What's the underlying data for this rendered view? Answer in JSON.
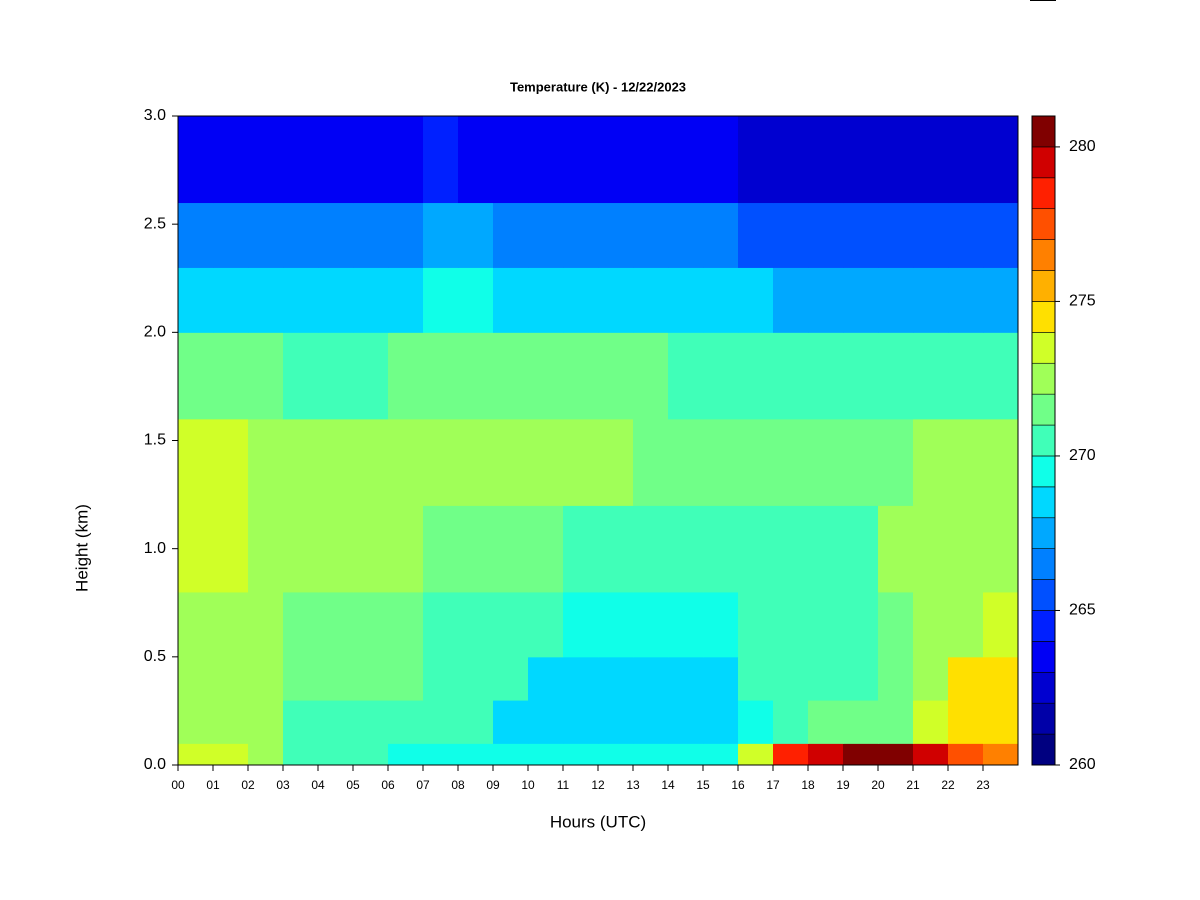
{
  "chart_data": {
    "type": "heatmap",
    "title": "Temperature (K) - 12/22/2023",
    "x_label": "Hours (UTC)",
    "y_label": "Height (km)",
    "xlim": [
      0,
      24
    ],
    "ylim": [
      0,
      3
    ],
    "xticks": [
      {
        "value": 0,
        "label": "00"
      },
      {
        "value": 1,
        "label": "01"
      },
      {
        "value": 2,
        "label": "02"
      },
      {
        "value": 3,
        "label": "03"
      },
      {
        "value": 4,
        "label": "04"
      },
      {
        "value": 5,
        "label": "05"
      },
      {
        "value": 6,
        "label": "06"
      },
      {
        "value": 7,
        "label": "07"
      },
      {
        "value": 8,
        "label": "08"
      },
      {
        "value": 9,
        "label": "09"
      },
      10,
      11,
      12,
      13,
      14,
      15,
      16,
      17,
      18,
      19,
      20,
      21,
      22,
      23
    ],
    "yticks": [
      {
        "value": 0,
        "label": "0.0"
      },
      0.5,
      {
        "value": 1,
        "label": "1.0"
      },
      1.5,
      {
        "value": 2,
        "label": "2.0"
      },
      2.5,
      {
        "value": 3,
        "label": "3.0"
      }
    ],
    "x_edges": [
      0,
      1,
      2,
      3,
      4,
      5,
      6,
      7,
      8,
      9,
      10,
      11,
      12,
      13,
      14,
      15,
      16,
      17,
      18,
      19,
      20,
      21,
      22,
      23,
      24
    ],
    "y_edges": [
      0,
      0.1,
      0.3,
      0.5,
      0.8,
      1.2,
      1.6,
      2.0,
      2.3,
      2.6,
      3.0
    ],
    "z": [
      [
        273,
        273,
        272,
        270,
        270,
        270,
        269.5,
        269.5,
        269.5,
        269,
        269,
        269,
        269,
        269,
        269,
        269.5,
        273,
        278,
        279,
        280,
        280,
        279,
        277,
        276
      ],
      [
        272,
        272,
        272,
        270,
        270,
        270,
        270,
        270,
        270,
        268.5,
        268.5,
        268,
        268,
        268,
        268,
        268.5,
        269,
        270,
        271,
        271,
        271.5,
        273,
        274,
        274
      ],
      [
        272,
        272,
        272,
        271,
        271,
        271,
        271,
        270,
        270,
        270,
        268.5,
        268.5,
        268.5,
        268.5,
        268.5,
        268.5,
        270,
        270,
        270,
        270,
        271,
        272,
        274,
        274
      ],
      [
        272.5,
        272.5,
        272.5,
        271,
        271,
        271,
        271,
        270,
        270,
        270,
        270,
        269,
        269,
        269,
        269,
        269,
        270,
        270,
        270,
        270,
        271,
        272,
        272,
        273
      ],
      [
        273,
        273,
        272,
        272,
        272,
        272,
        272,
        271,
        271,
        271,
        271,
        270,
        270,
        270,
        270,
        270.5,
        270.5,
        270.5,
        270.5,
        270.5,
        272,
        272,
        272,
        272
      ],
      [
        273,
        273,
        272,
        272,
        272,
        272,
        272,
        272,
        272,
        272,
        272,
        272.5,
        272.5,
        271,
        271,
        271,
        271,
        271,
        271,
        271,
        271,
        272,
        272,
        272
      ],
      [
        271,
        271,
        271,
        270.5,
        270.5,
        270.5,
        271,
        271,
        271,
        271,
        271,
        271,
        271,
        271,
        270.5,
        270.5,
        270.5,
        270.5,
        270,
        270,
        270,
        270,
        270,
        270
      ],
      [
        268.5,
        268.5,
        268.5,
        268,
        268,
        268.5,
        268.5,
        269,
        269,
        268.5,
        268.5,
        268.5,
        268.5,
        268,
        268,
        268,
        268,
        267,
        267,
        267,
        267,
        267,
        267,
        267
      ],
      [
        266.5,
        266.5,
        266.5,
        266,
        266,
        266.5,
        266.5,
        267,
        267,
        266.5,
        266.5,
        266.5,
        266.5,
        266,
        266,
        266,
        265.5,
        265,
        265,
        265,
        265,
        265,
        265,
        265.5
      ],
      [
        263.5,
        263.5,
        263.5,
        263,
        263,
        263.5,
        263.5,
        264,
        263.5,
        263.5,
        263.5,
        263.5,
        263.5,
        263,
        263,
        263,
        262.5,
        262,
        262,
        262,
        262,
        262,
        262.5,
        262.5
      ]
    ],
    "clim": [
      260,
      281
    ],
    "cticks": [
      260,
      265,
      270,
      275,
      280
    ],
    "colors": [
      "#000080",
      "#0000a8",
      "#0000d0",
      "#0000f5",
      "#0020ff",
      "#0050ff",
      "#0080ff",
      "#00a8ff",
      "#00d8ff",
      "#10ffe8",
      "#40ffb8",
      "#70ff88",
      "#a0ff58",
      "#d0ff28",
      "#ffe000",
      "#ffb000",
      "#ff8000",
      "#ff5000",
      "#ff2000",
      "#d00000",
      "#800000"
    ]
  }
}
